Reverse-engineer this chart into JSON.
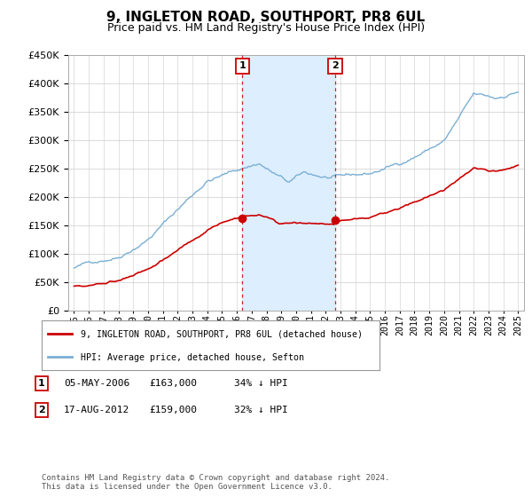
{
  "title": "9, INGLETON ROAD, SOUTHPORT, PR8 6UL",
  "subtitle": "Price paid vs. HM Land Registry's House Price Index (HPI)",
  "legend_property": "9, INGLETON ROAD, SOUTHPORT, PR8 6UL (detached house)",
  "legend_hpi": "HPI: Average price, detached house, Sefton",
  "sale1_date": "05-MAY-2006",
  "sale1_price": "£163,000",
  "sale1_pct": "34% ↓ HPI",
  "sale2_date": "17-AUG-2012",
  "sale2_price": "£159,000",
  "sale2_pct": "32% ↓ HPI",
  "footnote": "Contains HM Land Registry data © Crown copyright and database right 2024.\nThis data is licensed under the Open Government Licence v3.0.",
  "ylim": [
    0,
    450000
  ],
  "yticks": [
    0,
    50000,
    100000,
    150000,
    200000,
    250000,
    300000,
    350000,
    400000,
    450000
  ],
  "sale1_x": 2006.37,
  "sale2_x": 2012.63,
  "property_color": "#cc0000",
  "hpi_color": "#7aafd4",
  "shade_color": "#ddeeff",
  "vline_color": "#cc0000",
  "background_color": "#ffffff",
  "title_fontsize": 11,
  "subtitle_fontsize": 9,
  "sale1_price_val": 163000,
  "sale2_price_val": 159000
}
